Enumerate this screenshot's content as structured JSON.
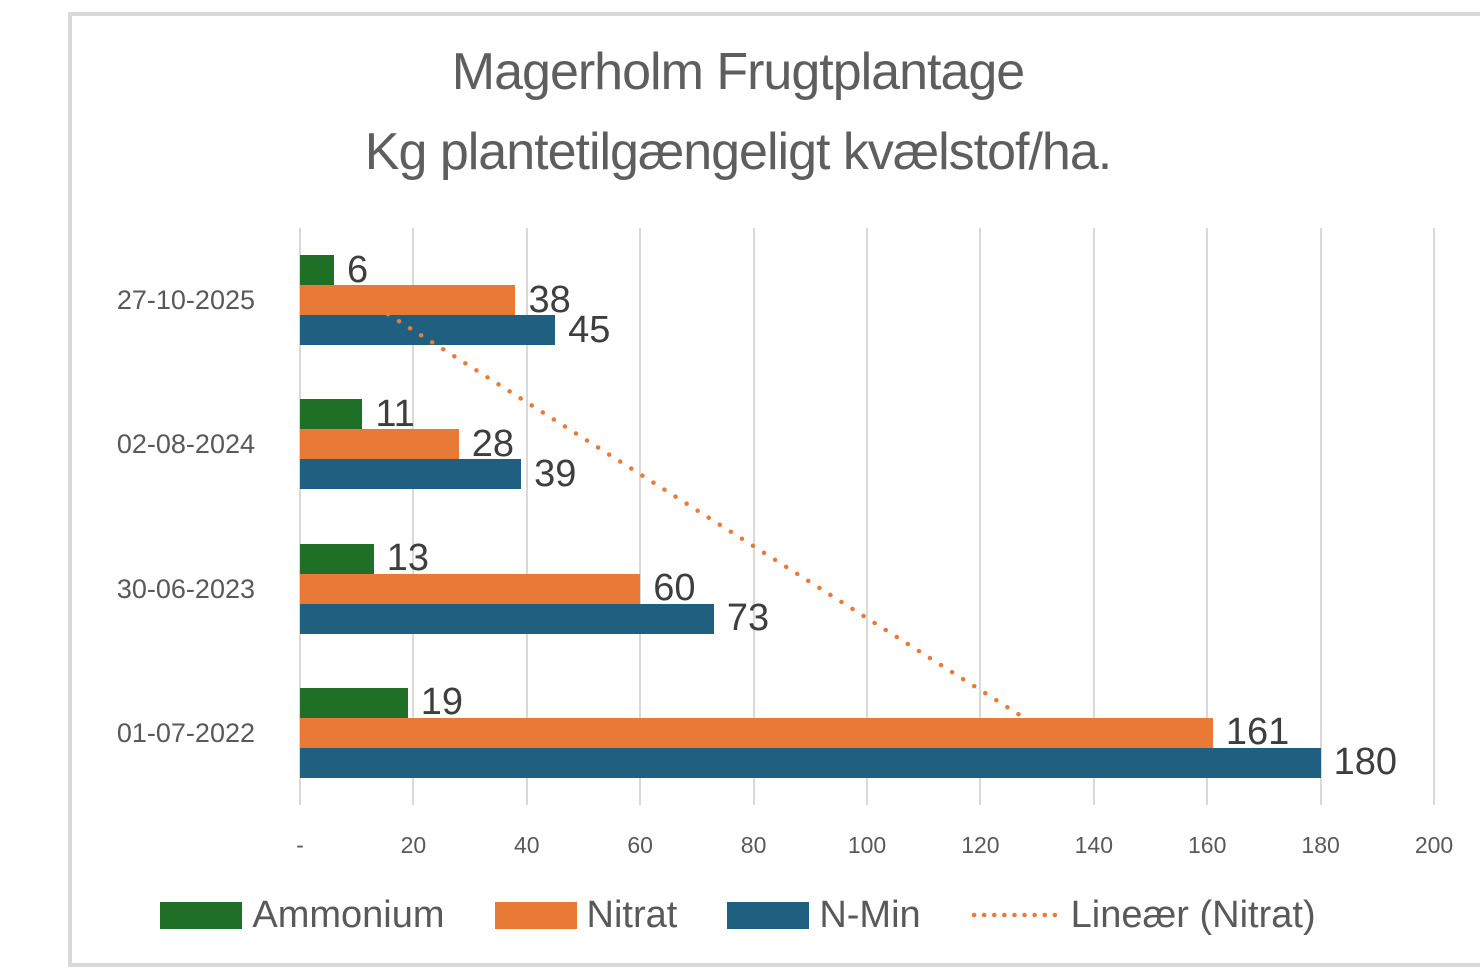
{
  "chart_data": {
    "type": "bar",
    "orientation": "horizontal",
    "title_lines": [
      "Magerholm Frugtplantage",
      "Kg plantetilgængeligt kvælstof/ha."
    ],
    "categories": [
      "27-10-2025",
      "02-08-2024",
      "30-06-2023",
      "01-07-2022"
    ],
    "series": [
      {
        "name": "Ammonium",
        "color": "#1F7026",
        "values": [
          6,
          11,
          13,
          19
        ]
      },
      {
        "name": "Nitrat",
        "color": "#E97A35",
        "values": [
          38,
          28,
          60,
          161
        ]
      },
      {
        "name": "N-Min",
        "color": "#1F6080",
        "values": [
          45,
          39,
          73,
          180
        ]
      }
    ],
    "trendline": {
      "name": "Lineær (Nitrat)",
      "of_series": "Nitrat",
      "style": "dotted",
      "color": "#EA7A38",
      "start_value": 11.6,
      "end_value": 131.9,
      "note": "runs from first category row center to last category row center"
    },
    "x_ticks": [
      "-",
      "20",
      "40",
      "60",
      "80",
      "100",
      "120",
      "140",
      "160",
      "180",
      "200"
    ],
    "xlim": [
      0,
      200
    ],
    "gridlines": true,
    "data_labels": true,
    "legend_position": "bottom",
    "colors": {
      "frame_border": "#D9D9D9",
      "gridline": "#D9D9D9",
      "title_text": "#5E5E5E",
      "axis_text": "#595959",
      "data_label_text": "#3E3E3E",
      "background": "#FFFFFF"
    }
  }
}
